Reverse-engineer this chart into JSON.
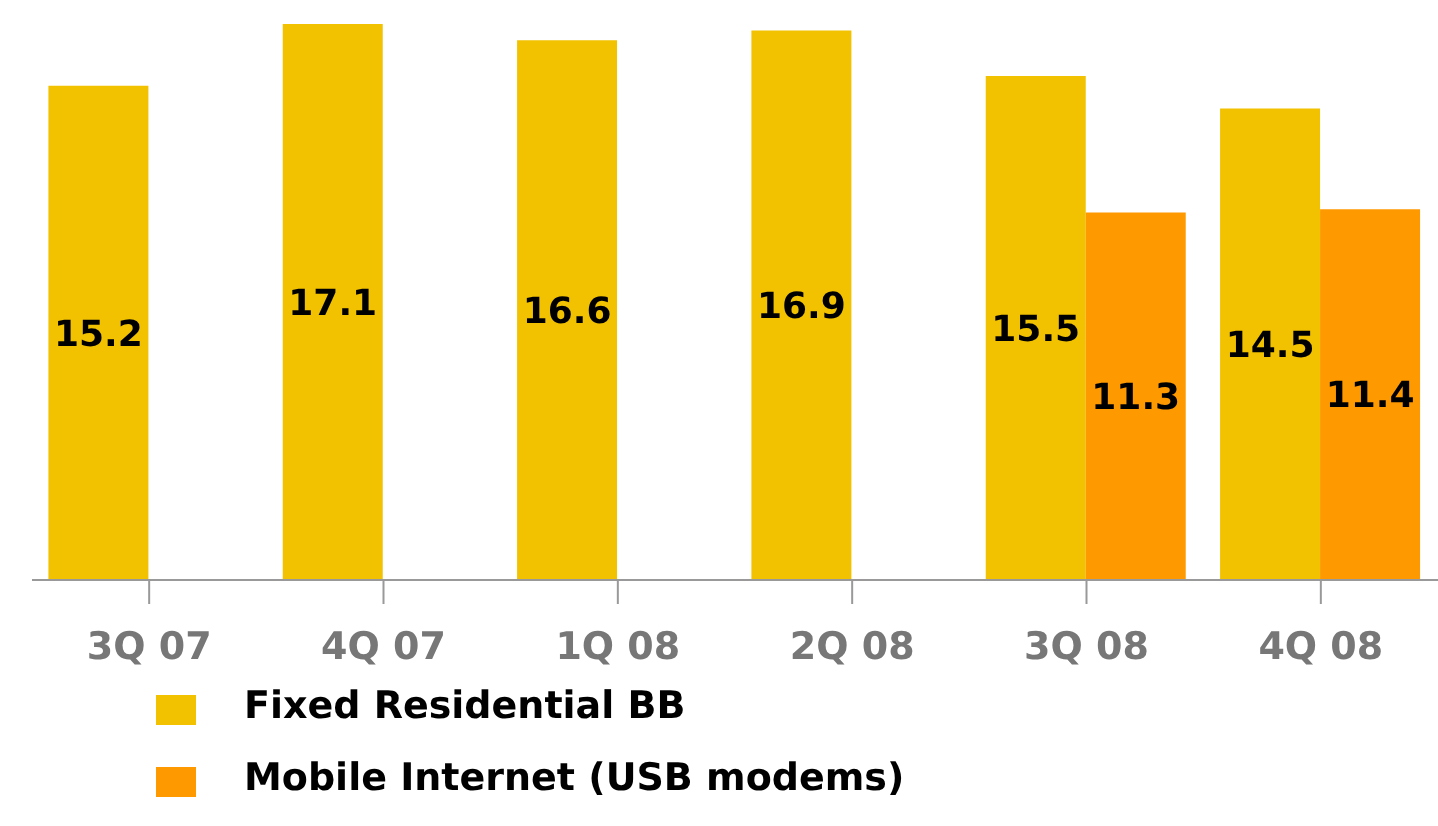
{
  "chart_data": {
    "type": "bar",
    "categories": [
      "3Q 07",
      "4Q 07",
      "1Q 08",
      "2Q 08",
      "3Q 08",
      "4Q 08"
    ],
    "series": [
      {
        "name": "Fixed Residential BB",
        "color": "#f2c200",
        "values": [
          15.2,
          17.1,
          16.6,
          16.9,
          15.5,
          14.5
        ]
      },
      {
        "name": "Mobile Internet (USB modems)",
        "color": "#ff9900",
        "values": [
          null,
          null,
          null,
          null,
          11.3,
          11.4
        ]
      }
    ],
    "data_labels": true,
    "legend": "bottom",
    "grid": false
  }
}
